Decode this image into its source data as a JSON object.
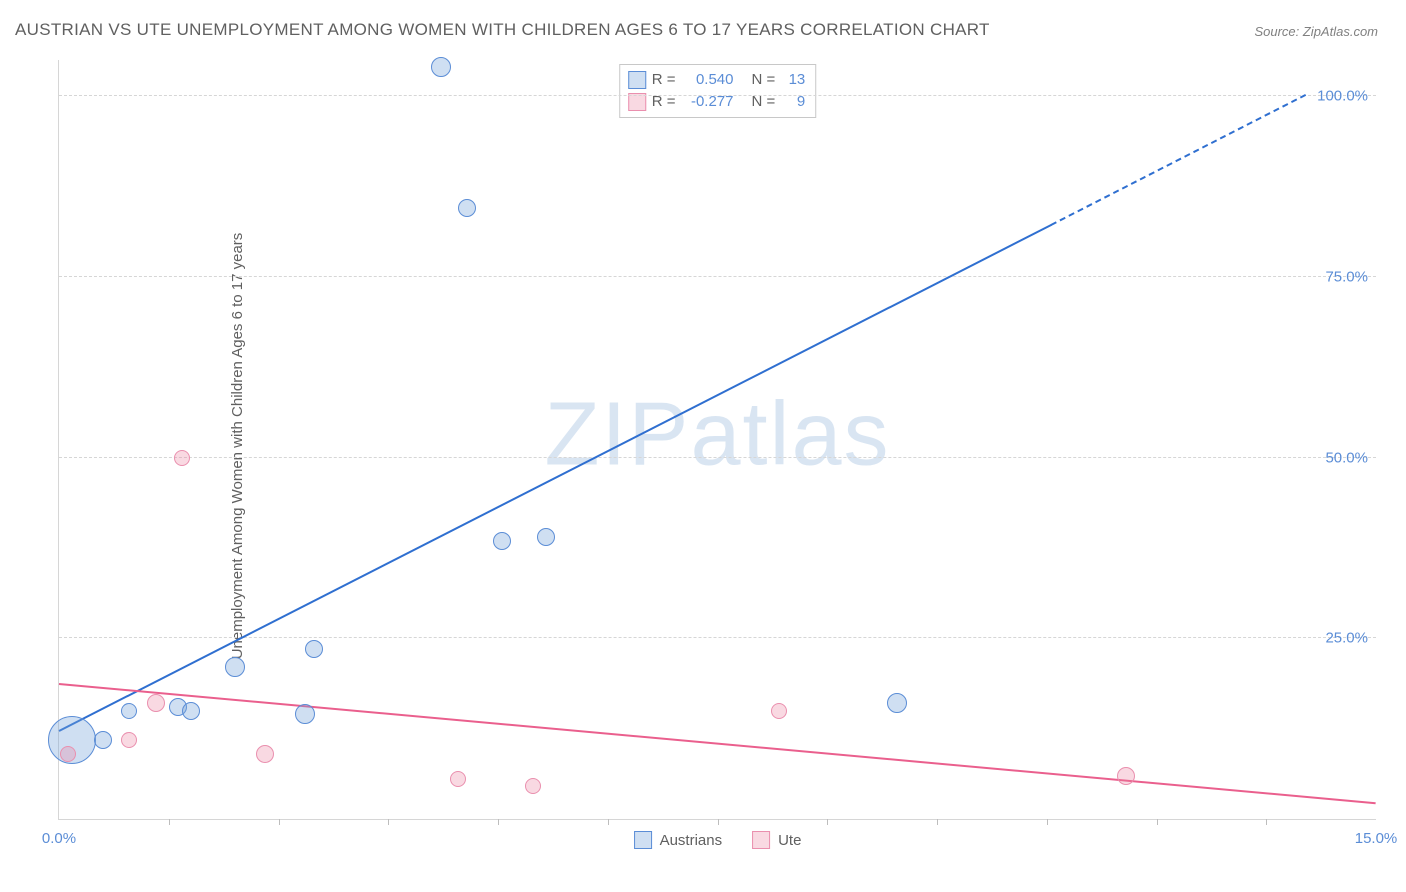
{
  "title": "AUSTRIAN VS UTE UNEMPLOYMENT AMONG WOMEN WITH CHILDREN AGES 6 TO 17 YEARS CORRELATION CHART",
  "source": "Source: ZipAtlas.com",
  "ylabel": "Unemployment Among Women with Children Ages 6 to 17 years",
  "watermark_bold": "ZIP",
  "watermark_thin": "atlas",
  "chart": {
    "type": "scatter-correlation",
    "background_color": "#ffffff",
    "grid_color": "#d6d6d6",
    "axis_color": "#d6d6d6",
    "tick_color": "#bdbdbd",
    "label_color": "#5b8dd6",
    "title_color": "#606060",
    "xlim": [
      0,
      15
    ],
    "ylim": [
      0,
      105
    ],
    "y_ticks": [
      {
        "value": 25,
        "label": "25.0%"
      },
      {
        "value": 50,
        "label": "50.0%"
      },
      {
        "value": 75,
        "label": "75.0%"
      },
      {
        "value": 100,
        "label": "100.0%"
      }
    ],
    "x_ticks_minor": [
      1.25,
      2.5,
      3.75,
      5.0,
      6.25,
      7.5,
      8.75,
      10.0,
      11.25,
      12.5,
      13.75
    ],
    "x_labels": [
      {
        "value": 0,
        "label": "0.0%"
      },
      {
        "value": 15,
        "label": "15.0%"
      }
    ],
    "series": [
      {
        "name": "Austrians",
        "fill_color": "rgba(118,163,219,0.35)",
        "stroke_color": "#5b8dd6",
        "trend_color": "#2f6fd0",
        "trend": {
          "x1": 0,
          "y1": 12,
          "x2_solid": 11.3,
          "y2_solid": 82,
          "x2": 14.2,
          "y2": 100
        },
        "r_label": "R = ",
        "r_value": "0.540",
        "n_label": "N = ",
        "n_value": "13",
        "points": [
          {
            "x": 0.15,
            "y": 11,
            "r": 24
          },
          {
            "x": 0.5,
            "y": 11,
            "r": 9
          },
          {
            "x": 0.8,
            "y": 15,
            "r": 8
          },
          {
            "x": 1.35,
            "y": 15.5,
            "r": 9
          },
          {
            "x": 1.5,
            "y": 15,
            "r": 9
          },
          {
            "x": 2.0,
            "y": 21,
            "r": 10
          },
          {
            "x": 2.8,
            "y": 14.5,
            "r": 10
          },
          {
            "x": 2.9,
            "y": 23.5,
            "r": 9
          },
          {
            "x": 4.35,
            "y": 104,
            "r": 10
          },
          {
            "x": 4.65,
            "y": 84.5,
            "r": 9
          },
          {
            "x": 5.05,
            "y": 38.5,
            "r": 9
          },
          {
            "x": 5.55,
            "y": 39,
            "r": 9
          },
          {
            "x": 9.55,
            "y": 16,
            "r": 10
          }
        ]
      },
      {
        "name": "Ute",
        "fill_color": "rgba(236,128,159,0.30)",
        "stroke_color": "#ea8fae",
        "trend_color": "#ea5f8d",
        "trend": {
          "x1": 0,
          "y1": 18.5,
          "x2_solid": 15,
          "y2_solid": 2,
          "x2": 15,
          "y2": 2
        },
        "r_label": "R = ",
        "r_value": "-0.277",
        "n_label": "N = ",
        "n_value": "9",
        "points": [
          {
            "x": 0.1,
            "y": 9,
            "r": 8
          },
          {
            "x": 0.8,
            "y": 11,
            "r": 8
          },
          {
            "x": 1.1,
            "y": 16,
            "r": 9
          },
          {
            "x": 1.4,
            "y": 50,
            "r": 8
          },
          {
            "x": 2.35,
            "y": 9,
            "r": 9
          },
          {
            "x": 4.55,
            "y": 5.5,
            "r": 8
          },
          {
            "x": 5.4,
            "y": 4.5,
            "r": 8
          },
          {
            "x": 8.2,
            "y": 15,
            "r": 8
          },
          {
            "x": 12.15,
            "y": 6,
            "r": 9
          }
        ]
      }
    ]
  }
}
